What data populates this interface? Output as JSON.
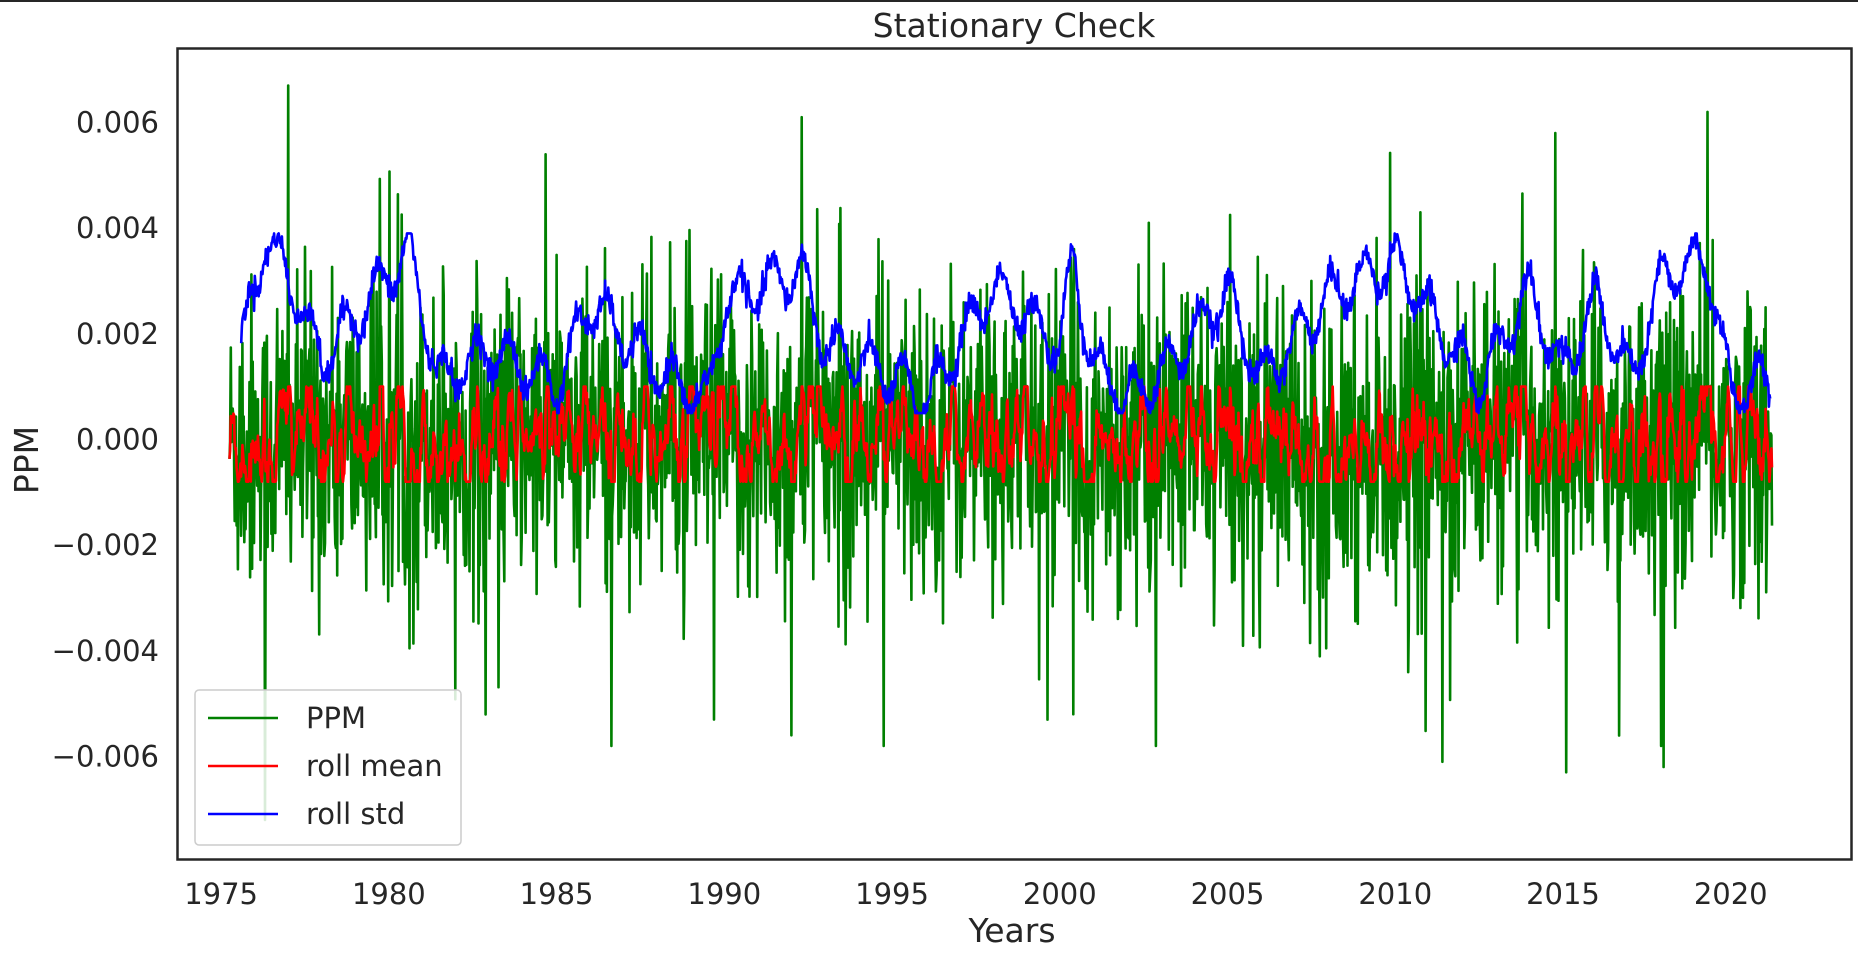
{
  "chart_data": {
    "type": "line",
    "title": "Stationary Check",
    "xlabel": "Years",
    "ylabel": "PPM",
    "xlim": [
      1973.7,
      2023.6
    ],
    "ylim": [
      -0.00795,
      0.0074
    ],
    "xticks": [
      1975,
      1980,
      1985,
      1990,
      1995,
      2000,
      2005,
      2010,
      2015,
      2020
    ],
    "yticks": [
      {
        "value": -0.006,
        "label": "−0.006"
      },
      {
        "value": -0.004,
        "label": "−0.004"
      },
      {
        "value": -0.002,
        "label": "−0.002"
      },
      {
        "value": 0.0,
        "label": "0.000"
      },
      {
        "value": 0.002,
        "label": "0.002"
      },
      {
        "value": 0.004,
        "label": "0.004"
      },
      {
        "value": 0.006,
        "label": "0.006"
      }
    ],
    "grid": false,
    "legend_position": "lower-left",
    "x_range_data": [
      1975.25,
      2021.25
    ],
    "series": [
      {
        "name": "PPM",
        "color": "#008000",
        "sampling": "weekly",
        "values_note": "dense weekly series, amplitude mostly within ±0.003 with spikes up to ~0.0067 and down to ~-0.0072",
        "notable_extremes": [
          [
            1977.0,
            0.0067
          ],
          [
            1976.3,
            -0.0072
          ],
          [
            1992.3,
            0.0061
          ],
          [
            2019.3,
            0.0062
          ],
          [
            2015.1,
            -0.0063
          ],
          [
            2018.0,
            -0.0062
          ],
          [
            2011.4,
            -0.0061
          ],
          [
            1992.0,
            -0.0056
          ],
          [
            1989.7,
            -0.0053
          ],
          [
            2000.4,
            -0.0052
          ]
        ]
      },
      {
        "name": "roll mean",
        "color": "#ff0000",
        "sampling": "weekly rolling mean",
        "values_note": "oscillates around 0 within roughly ±0.0005"
      },
      {
        "name": "roll std",
        "color": "#0000ff",
        "sampling": "weekly rolling std",
        "key_points": [
          [
            1975.6,
            0.0017
          ],
          [
            1976.3,
            0.0038
          ],
          [
            1977.0,
            0.0031
          ],
          [
            1978.0,
            0.0015
          ],
          [
            1980.6,
            0.0036
          ],
          [
            1981.5,
            0.0011
          ],
          [
            1983.0,
            0.0017
          ],
          [
            1985.0,
            0.001
          ],
          [
            1986.0,
            0.0026
          ],
          [
            1988.0,
            0.0013
          ],
          [
            1989.5,
            0.0007
          ],
          [
            1990.0,
            0.0026
          ],
          [
            1992.3,
            0.0032
          ],
          [
            1993.0,
            0.0018
          ],
          [
            1995.0,
            0.0012
          ],
          [
            1996.0,
            0.0007
          ],
          [
            1998.0,
            0.0029
          ],
          [
            2000.0,
            0.0018
          ],
          [
            2000.4,
            0.0034
          ],
          [
            2001.0,
            0.0014
          ],
          [
            2002.0,
            0.0008
          ],
          [
            2003.0,
            0.0012
          ],
          [
            2005.0,
            0.0028
          ],
          [
            2006.0,
            0.0011
          ],
          [
            2008.0,
            0.0027
          ],
          [
            2010.0,
            0.0034
          ],
          [
            2011.0,
            0.0024
          ],
          [
            2012.5,
            0.001
          ],
          [
            2014.0,
            0.0029
          ],
          [
            2015.0,
            0.0012
          ],
          [
            2016.0,
            0.0027
          ],
          [
            2017.0,
            0.0011
          ],
          [
            2018.0,
            0.0031
          ],
          [
            2019.3,
            0.0034
          ],
          [
            2020.0,
            0.0009
          ],
          [
            2021.2,
            0.0011
          ]
        ]
      }
    ]
  }
}
